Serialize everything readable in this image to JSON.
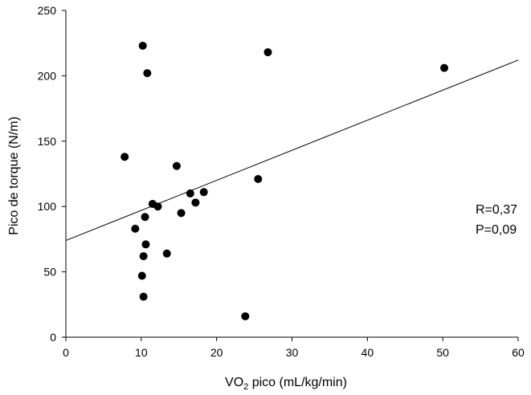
{
  "chart_data": {
    "type": "scatter",
    "title": "",
    "xlabel": {
      "main": "VO",
      "sub": "2",
      "rest": " pico (mL/kg/min)"
    },
    "ylabel": "Pico de torque (N/m)",
    "xlim": [
      0,
      60
    ],
    "ylim": [
      0,
      250
    ],
    "xticks": [
      "0",
      "10",
      "20",
      "30",
      "40",
      "50",
      "60"
    ],
    "yticks": [
      "0",
      "50",
      "100",
      "150",
      "200",
      "250"
    ],
    "grid": false,
    "points": [
      {
        "x": 10.2,
        "y": 223
      },
      {
        "x": 10.8,
        "y": 202
      },
      {
        "x": 26.8,
        "y": 218
      },
      {
        "x": 50.2,
        "y": 206
      },
      {
        "x": 7.8,
        "y": 138
      },
      {
        "x": 14.7,
        "y": 131
      },
      {
        "x": 25.5,
        "y": 121
      },
      {
        "x": 18.3,
        "y": 111
      },
      {
        "x": 16.5,
        "y": 110
      },
      {
        "x": 17.2,
        "y": 103
      },
      {
        "x": 11.5,
        "y": 102
      },
      {
        "x": 12.2,
        "y": 100
      },
      {
        "x": 15.3,
        "y": 95
      },
      {
        "x": 10.5,
        "y": 92
      },
      {
        "x": 9.2,
        "y": 83
      },
      {
        "x": 10.6,
        "y": 71
      },
      {
        "x": 13.4,
        "y": 64
      },
      {
        "x": 10.3,
        "y": 62
      },
      {
        "x": 10.1,
        "y": 47
      },
      {
        "x": 10.3,
        "y": 31
      },
      {
        "x": 23.8,
        "y": 16
      }
    ],
    "regression_line": {
      "x": [
        0,
        60
      ],
      "y": [
        74,
        212
      ]
    },
    "annotations": [
      "R=0,37",
      "P=0,09"
    ]
  }
}
